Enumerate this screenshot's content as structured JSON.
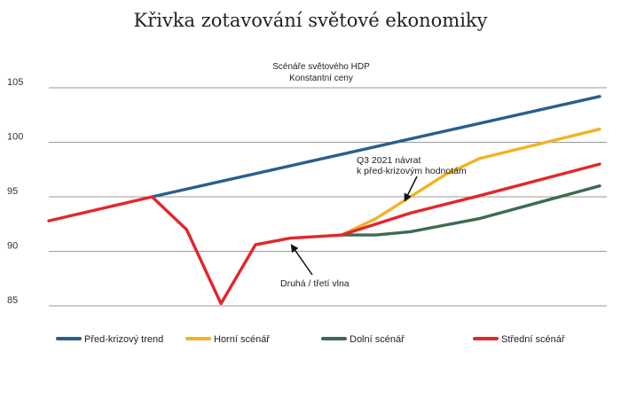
{
  "chart_data": {
    "type": "line",
    "title": "Křivka zotavování světové ekonomiky",
    "subtitle": [
      "Scénáře světového HDP",
      "Konstantní ceny"
    ],
    "ylim": [
      85,
      105
    ],
    "yticks": [
      85,
      90,
      95,
      100,
      105
    ],
    "x": [
      0,
      1,
      2,
      3,
      4,
      5,
      6,
      7,
      8,
      9,
      10,
      11,
      12,
      13,
      14,
      15,
      16
    ],
    "grid": true,
    "legend_position": "bottom",
    "series": [
      {
        "name": "Před-krizový trend",
        "color": "#2a5f8c",
        "points": [
          [
            3,
            95
          ],
          [
            16,
            104.2
          ]
        ]
      },
      {
        "name": "Horní scénář",
        "color": "#f0b323",
        "points": [
          [
            8.5,
            91.5
          ],
          [
            9.5,
            93
          ],
          [
            10.5,
            95
          ],
          [
            11.5,
            97
          ],
          [
            12.5,
            98.5
          ],
          [
            16,
            101.2
          ]
        ]
      },
      {
        "name": "Dolní scénář",
        "color": "#3d6b50",
        "points": [
          [
            8.5,
            91.5
          ],
          [
            9.5,
            91.5
          ],
          [
            10.5,
            91.8
          ],
          [
            11.5,
            92.4
          ],
          [
            12.5,
            93
          ],
          [
            16,
            96
          ]
        ]
      },
      {
        "name": "Střední scénář",
        "color": "#e3262b",
        "points": [
          [
            0,
            92.8
          ],
          [
            3,
            95
          ],
          [
            4,
            92
          ],
          [
            5,
            85.2
          ],
          [
            6,
            90.6
          ],
          [
            7,
            91.2
          ],
          [
            8.5,
            91.5
          ],
          [
            10.5,
            93.5
          ],
          [
            12.5,
            95.1
          ],
          [
            16,
            98
          ]
        ]
      }
    ],
    "annotations": [
      {
        "lines": [
          "Q3 2021 návrat",
          "k před-krizovým hodnotám"
        ],
        "x": 10.5,
        "y": 95
      },
      {
        "lines": [
          "Druhá / třetí vlna"
        ],
        "x": 7,
        "y": 91.2
      }
    ]
  }
}
